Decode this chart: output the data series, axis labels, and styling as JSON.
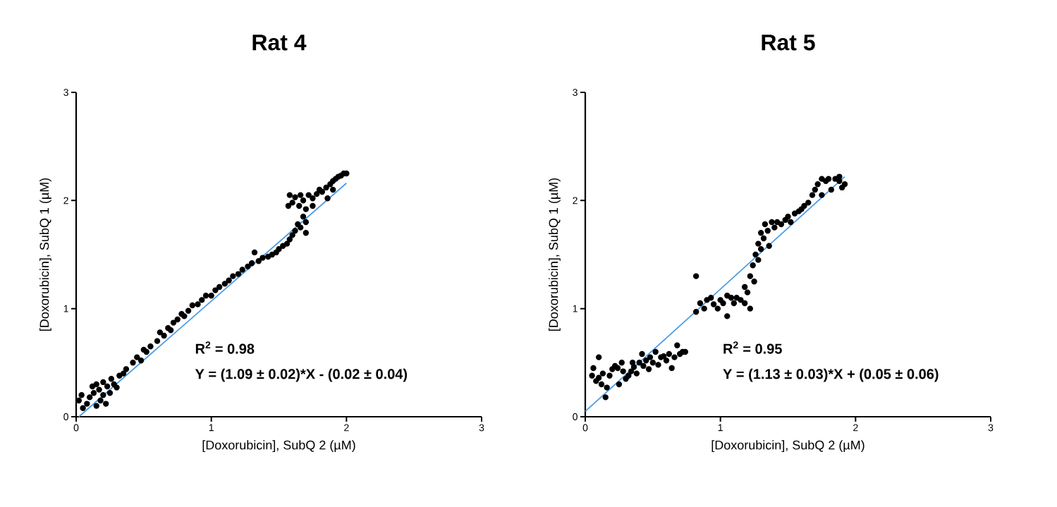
{
  "chart_data": [
    {
      "type": "scatter",
      "title": "Rat 4",
      "xlabel": "[Doxorubicin], SubQ 2 (µM)",
      "ylabel": "[Doxorubicin], SubQ 1 (µM)",
      "xlim": [
        0,
        3
      ],
      "ylim": [
        0,
        3
      ],
      "xticks": [
        0,
        1,
        2,
        3
      ],
      "yticks": [
        0,
        1,
        2,
        3
      ],
      "annotations": [
        "R$^{2}$ =  0.98",
        "Y = (1.09 ± 0.02)*X - (0.02 ± 0.04)"
      ],
      "series": [
        {
          "color": "#000000",
          "marker": "circle",
          "x": [
            0.02,
            0.04,
            0.05,
            0.08,
            0.1,
            0.12,
            0.13,
            0.15,
            0.15,
            0.17,
            0.18,
            0.2,
            0.2,
            0.22,
            0.23,
            0.25,
            0.26,
            0.28,
            0.3,
            0.32,
            0.35,
            0.37,
            0.42,
            0.45,
            0.48,
            0.5,
            0.52,
            0.55,
            0.6,
            0.62,
            0.65,
            0.68,
            0.7,
            0.72,
            0.75,
            0.78,
            0.8,
            0.83,
            0.86,
            0.9,
            0.93,
            0.96,
            1.0,
            1.03,
            1.06,
            1.1,
            1.13,
            1.16,
            1.2,
            1.23,
            1.27,
            1.3,
            1.32,
            1.35,
            1.38,
            1.42,
            1.45,
            1.48,
            1.5,
            1.53,
            1.56,
            1.58,
            1.6,
            1.62,
            1.64,
            1.66,
            1.68,
            1.7,
            1.57,
            1.58,
            1.6,
            1.62,
            1.65,
            1.66,
            1.68,
            1.7,
            1.72,
            1.75,
            1.78,
            1.8,
            1.82,
            1.85,
            1.88,
            1.9,
            1.92,
            1.94,
            1.96,
            1.98,
            2.0,
            1.9,
            1.86,
            1.75,
            1.7
          ],
          "values": [
            0.15,
            0.2,
            0.08,
            0.12,
            0.18,
            0.28,
            0.22,
            0.1,
            0.3,
            0.25,
            0.15,
            0.2,
            0.32,
            0.12,
            0.28,
            0.22,
            0.35,
            0.3,
            0.27,
            0.38,
            0.4,
            0.44,
            0.5,
            0.55,
            0.52,
            0.62,
            0.6,
            0.65,
            0.7,
            0.78,
            0.75,
            0.82,
            0.8,
            0.87,
            0.9,
            0.95,
            0.93,
            0.98,
            1.03,
            1.04,
            1.08,
            1.12,
            1.12,
            1.17,
            1.2,
            1.23,
            1.26,
            1.3,
            1.32,
            1.36,
            1.39,
            1.42,
            1.52,
            1.44,
            1.47,
            1.48,
            1.5,
            1.52,
            1.55,
            1.58,
            1.6,
            1.64,
            1.68,
            1.72,
            1.78,
            1.75,
            1.85,
            1.8,
            1.95,
            2.05,
            1.98,
            2.03,
            1.95,
            2.05,
            2.0,
            1.92,
            2.05,
            2.02,
            2.06,
            2.1,
            2.08,
            2.12,
            2.15,
            2.18,
            2.2,
            2.22,
            2.23,
            2.25,
            2.25,
            2.1,
            2.02,
            1.95,
            1.7
          ]
        },
        {
          "type": "line",
          "color": "#4a9be8",
          "marker": "none",
          "line_style": "solid",
          "x": [
            0.02,
            2
          ],
          "values": [
            0.0,
            2.16
          ]
        }
      ]
    },
    {
      "type": "scatter",
      "title": "Rat 5",
      "xlabel": "[Doxorubicin], SubQ 2 (µM)",
      "ylabel": "[Doxorubicin], SubQ 1 (µM)",
      "xlim": [
        0,
        3
      ],
      "ylim": [
        0,
        3
      ],
      "xticks": [
        0,
        1,
        2,
        3
      ],
      "yticks": [
        0,
        1,
        2,
        3
      ],
      "annotations": [
        "R$^{2}$ = 0.95",
        "Y = (1.13 ± 0.03)*X + (0.05 ± 0.06)"
      ],
      "series": [
        {
          "color": "#000000",
          "marker": "circle",
          "x": [
            0.05,
            0.06,
            0.08,
            0.1,
            0.1,
            0.12,
            0.13,
            0.15,
            0.16,
            0.18,
            0.2,
            0.22,
            0.24,
            0.25,
            0.27,
            0.28,
            0.3,
            0.32,
            0.34,
            0.35,
            0.36,
            0.38,
            0.4,
            0.42,
            0.43,
            0.45,
            0.47,
            0.48,
            0.5,
            0.52,
            0.54,
            0.56,
            0.58,
            0.6,
            0.62,
            0.64,
            0.66,
            0.68,
            0.7,
            0.72,
            0.74,
            0.82,
            0.82,
            0.85,
            0.88,
            0.9,
            0.93,
            0.95,
            0.98,
            1.0,
            1.02,
            1.05,
            1.05,
            1.08,
            1.1,
            1.12,
            1.15,
            1.18,
            1.18,
            1.2,
            1.22,
            1.24,
            1.22,
            1.25,
            1.26,
            1.28,
            1.28,
            1.3,
            1.3,
            1.32,
            1.33,
            1.35,
            1.36,
            1.38,
            1.4,
            1.42,
            1.45,
            1.48,
            1.5,
            1.52,
            1.55,
            1.58,
            1.6,
            1.62,
            1.65,
            1.68,
            1.7,
            1.72,
            1.75,
            1.78,
            1.8,
            1.82,
            1.85,
            1.88,
            1.9,
            1.92,
            1.88,
            1.75
          ],
          "values": [
            0.38,
            0.45,
            0.33,
            0.55,
            0.36,
            0.3,
            0.4,
            0.18,
            0.27,
            0.38,
            0.44,
            0.47,
            0.45,
            0.3,
            0.5,
            0.42,
            0.35,
            0.38,
            0.42,
            0.5,
            0.46,
            0.4,
            0.5,
            0.58,
            0.47,
            0.52,
            0.44,
            0.55,
            0.5,
            0.6,
            0.48,
            0.55,
            0.56,
            0.52,
            0.58,
            0.45,
            0.55,
            0.66,
            0.58,
            0.6,
            0.6,
            1.3,
            0.97,
            1.05,
            1.0,
            1.08,
            1.1,
            1.04,
            1.0,
            1.08,
            1.05,
            0.93,
            1.12,
            1.1,
            1.05,
            1.1,
            1.08,
            1.05,
            1.2,
            1.15,
            1.3,
            1.4,
            1.0,
            1.25,
            1.5,
            1.45,
            1.6,
            1.55,
            1.7,
            1.65,
            1.78,
            1.72,
            1.58,
            1.8,
            1.75,
            1.8,
            1.78,
            1.82,
            1.85,
            1.8,
            1.88,
            1.9,
            1.92,
            1.95,
            1.98,
            2.05,
            2.1,
            2.15,
            2.05,
            2.18,
            2.2,
            2.1,
            2.2,
            2.18,
            2.12,
            2.15,
            2.22,
            2.2
          ]
        },
        {
          "type": "line",
          "color": "#4a9be8",
          "marker": "none",
          "line_style": "solid",
          "x": [
            0,
            1.92
          ],
          "values": [
            0.05,
            2.22
          ]
        }
      ]
    }
  ]
}
